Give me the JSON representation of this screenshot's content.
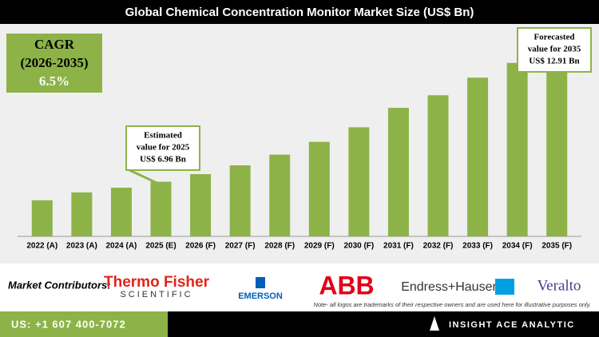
{
  "chart_data": {
    "type": "bar",
    "title": "Global Chemical Concentration Monitor Market Size (US$ Bn)",
    "categories": [
      "2022 (A)",
      "2023 (A)",
      "2024 (A)",
      "2025 (E)",
      "2026 (F)",
      "2027 (F)",
      "2028 (F)",
      "2029 (F)",
      "2030 (F)",
      "2031 (F)",
      "2032 (F)",
      "2033 (F)",
      "2034 (F)",
      "2035 (F)"
    ],
    "values": [
      6.18,
      6.51,
      6.71,
      6.96,
      7.28,
      7.65,
      8.1,
      8.64,
      9.25,
      10.07,
      10.6,
      11.34,
      11.96,
      12.91
    ],
    "color": "#8db348",
    "ylim": [
      4.66,
      13.6
    ],
    "annotations": [
      {
        "lines": [
          "Estimated",
          "value for 2025",
          "US$ 6.96 Bn"
        ],
        "category": 3
      },
      {
        "lines": [
          "Forecasted",
          "value for 2035",
          "US$ 12.91 Bn"
        ],
        "category": 13
      }
    ]
  },
  "cagr": {
    "label": "CAGR",
    "period": "(2026-2035)",
    "value": "6.5%"
  },
  "contributors": {
    "label": "Market Contributors:",
    "logos": [
      "Thermo Fisher",
      "SCIENTIFIC",
      "EMERSON",
      "ABB",
      "Endress+Hauser",
      "Veralto"
    ],
    "note": "Note- all logos are trademarks of their respective owners and are used here for illustrative purposes only."
  },
  "footer": {
    "phone": "US: +1 607 400-7072",
    "brand": "INSIGHT ACE ANALYTIC"
  }
}
